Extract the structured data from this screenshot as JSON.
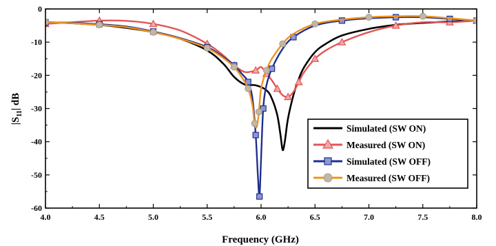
{
  "chart_data": {
    "type": "line",
    "xlabel": "Frequency (GHz)",
    "ylabel": "|S11| dB",
    "ylabel_main": "|S",
    "ylabel_sub": "11",
    "ylabel_tail": "| dB",
    "xlim": [
      4.0,
      8.0
    ],
    "ylim": [
      -60,
      0
    ],
    "xticks": [
      4.0,
      4.5,
      5.0,
      5.5,
      6.0,
      6.5,
      7.0,
      7.5,
      8.0
    ],
    "xtick_labels": [
      "4.0",
      "4.5",
      "5.0",
      "5.5",
      "6.0",
      "6.5",
      "7.0",
      "7.5",
      "8.0"
    ],
    "yticks": [
      0,
      -10,
      -20,
      -30,
      -40,
      -50,
      -60
    ],
    "ytick_labels": [
      "0",
      "-10",
      "-20",
      "-30",
      "-40",
      "-50",
      "-60"
    ],
    "grid": false,
    "legend_position": "bottom-right",
    "series": [
      {
        "name": "Simulated (SW ON)",
        "color": "#000000",
        "marker": "none",
        "x": [
          4.0,
          4.25,
          4.5,
          4.75,
          5.0,
          5.25,
          5.5,
          5.65,
          5.75,
          5.85,
          5.95,
          6.05,
          6.1,
          6.15,
          6.18,
          6.2,
          6.22,
          6.25,
          6.3,
          6.35,
          6.4,
          6.5,
          6.6,
          6.75,
          7.0,
          7.25,
          7.5,
          7.75,
          8.0
        ],
        "y": [
          -4.0,
          -4.3,
          -4.8,
          -5.7,
          -7.0,
          -9.0,
          -12.5,
          -16.5,
          -20.5,
          -22.8,
          -23.0,
          -24.5,
          -27.0,
          -32.0,
          -38.0,
          -42.5,
          -40.0,
          -33.0,
          -26.0,
          -21.0,
          -17.5,
          -13.0,
          -10.5,
          -8.0,
          -6.0,
          -4.8,
          -4.2,
          -3.8,
          -3.5
        ]
      },
      {
        "name": "Measured (SW ON)",
        "color": "#e25555",
        "marker": "triangle",
        "x": [
          4.0,
          4.25,
          4.5,
          4.75,
          5.0,
          5.25,
          5.5,
          5.65,
          5.75,
          5.85,
          5.95,
          6.0,
          6.05,
          6.1,
          6.15,
          6.2,
          6.25,
          6.3,
          6.35,
          6.4,
          6.5,
          6.6,
          6.75,
          7.0,
          7.25,
          7.5,
          7.75,
          8.0
        ],
        "y": [
          -4.5,
          -4.0,
          -3.5,
          -3.6,
          -4.5,
          -6.5,
          -10.5,
          -14.0,
          -17.0,
          -19.0,
          -18.5,
          -17.5,
          -19.5,
          -21.5,
          -24.0,
          -26.0,
          -26.5,
          -25.0,
          -22.0,
          -19.0,
          -15.0,
          -12.5,
          -10.0,
          -7.0,
          -5.0,
          -4.0,
          -4.0,
          -3.5
        ]
      },
      {
        "name": "Simulated (SW OFF)",
        "color": "#1f2f8f",
        "marker": "square",
        "x": [
          4.0,
          4.25,
          4.5,
          4.75,
          5.0,
          5.25,
          5.5,
          5.65,
          5.75,
          5.82,
          5.88,
          5.92,
          5.95,
          5.97,
          5.985,
          6.0,
          6.02,
          6.05,
          6.1,
          6.2,
          6.3,
          6.5,
          6.75,
          7.0,
          7.25,
          7.5,
          7.75,
          8.0
        ],
        "y": [
          -4.0,
          -4.2,
          -4.6,
          -5.3,
          -6.8,
          -8.8,
          -11.5,
          -14.5,
          -17.0,
          -19.5,
          -22.0,
          -27.0,
          -38.0,
          -50.0,
          -56.5,
          -45.0,
          -30.0,
          -23.0,
          -18.0,
          -12.0,
          -8.5,
          -5.0,
          -3.5,
          -2.8,
          -2.5,
          -2.5,
          -3.0,
          -3.5
        ]
      },
      {
        "name": "Measured (SW OFF)",
        "color": "#f0921e",
        "marker": "circle",
        "x": [
          4.0,
          4.25,
          4.5,
          4.75,
          5.0,
          5.25,
          5.5,
          5.65,
          5.75,
          5.82,
          5.88,
          5.92,
          5.94,
          5.96,
          5.98,
          6.0,
          6.05,
          6.1,
          6.2,
          6.3,
          6.5,
          6.75,
          7.0,
          7.25,
          7.5,
          7.75,
          8.0
        ],
        "y": [
          -4.0,
          -4.3,
          -4.8,
          -5.5,
          -7.0,
          -9.0,
          -11.8,
          -14.8,
          -17.5,
          -20.5,
          -24.0,
          -29.0,
          -34.5,
          -35.5,
          -31.0,
          -24.0,
          -18.5,
          -15.0,
          -10.5,
          -7.5,
          -4.5,
          -3.2,
          -2.5,
          -2.2,
          -2.2,
          -2.8,
          -3.5
        ]
      }
    ]
  }
}
